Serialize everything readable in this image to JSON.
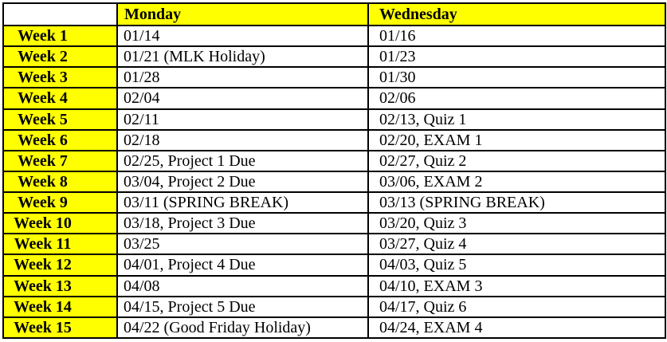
{
  "schedule": {
    "columns": [
      "",
      "Monday",
      "Wednesday"
    ],
    "rows": [
      {
        "week": "Week 1",
        "monday": "01/14",
        "wednesday": "01/16"
      },
      {
        "week": "Week 2",
        "monday": "01/21 (MLK Holiday)",
        "wednesday": "01/23"
      },
      {
        "week": "Week 3",
        "monday": "01/28",
        "wednesday": "01/30"
      },
      {
        "week": "Week 4",
        "monday": "02/04",
        "wednesday": "02/06"
      },
      {
        "week": "Week 5",
        "monday": "02/11",
        "wednesday": "02/13, Quiz 1"
      },
      {
        "week": "Week 6",
        "monday": "02/18",
        "wednesday": "02/20, EXAM 1"
      },
      {
        "week": "Week 7",
        "monday": "02/25, Project 1 Due",
        "wednesday": "02/27, Quiz 2"
      },
      {
        "week": "Week 8",
        "monday": "03/04, Project 2 Due",
        "wednesday": "03/06, EXAM 2"
      },
      {
        "week": "Week 9",
        "monday": "03/11 (SPRING BREAK)",
        "wednesday": "03/13 (SPRING BREAK)"
      },
      {
        "week": "Week 10",
        "monday": "03/18, Project 3 Due",
        "wednesday": "03/20, Quiz 3"
      },
      {
        "week": "Week 11",
        "monday": "03/25",
        "wednesday": "03/27, Quiz 4"
      },
      {
        "week": "Week 12",
        "monday": "04/01, Project 4 Due",
        "wednesday": "04/03, Quiz 5"
      },
      {
        "week": "Week 13",
        "monday": "04/08",
        "wednesday": "04/10, EXAM 3"
      },
      {
        "week": "Week 14",
        "monday": "04/15, Project 5 Due",
        "wednesday": "04/17, Quiz 6"
      },
      {
        "week": "Week 15",
        "monday": "04/22 (Good Friday Holiday)",
        "wednesday": "04/24, EXAM 4"
      }
    ],
    "colors": {
      "highlight": "#ffff00",
      "border": "#000000",
      "text": "#000000",
      "background": "#ffffff"
    }
  }
}
